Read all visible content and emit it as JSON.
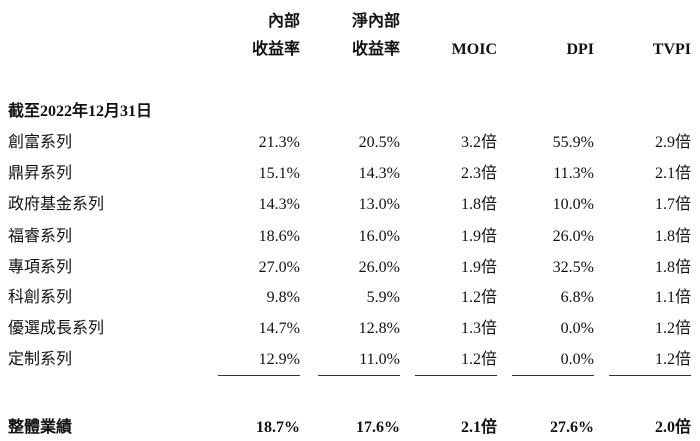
{
  "table": {
    "columns": [
      [
        "內部",
        "收益率"
      ],
      [
        "淨內部",
        "收益率"
      ],
      [
        "MOIC"
      ],
      [
        "DPI"
      ],
      [
        "TVPI"
      ]
    ],
    "section": "截至2022年12月31日",
    "rows": [
      [
        "創富系列",
        "21.3%",
        "20.5%",
        "3.2倍",
        "55.9%",
        "2.9倍"
      ],
      [
        "鼎昇系列",
        "15.1%",
        "14.3%",
        "2.3倍",
        "11.3%",
        "2.1倍"
      ],
      [
        "政府基金系列",
        "14.3%",
        "13.0%",
        "1.8倍",
        "10.0%",
        "1.7倍"
      ],
      [
        "福睿系列",
        "18.6%",
        "16.0%",
        "1.9倍",
        "26.0%",
        "1.8倍"
      ],
      [
        "專項系列",
        "27.0%",
        "26.0%",
        "1.9倍",
        "32.5%",
        "1.8倍"
      ],
      [
        "科創系列",
        "9.8%",
        "5.9%",
        "1.2倍",
        "6.8%",
        "1.1倍"
      ],
      [
        "優選成長系列",
        "14.7%",
        "12.8%",
        "1.3倍",
        "0.0%",
        "1.2倍"
      ],
      [
        "定制系列",
        "12.9%",
        "11.0%",
        "1.2倍",
        "0.0%",
        "1.2倍"
      ]
    ],
    "total": [
      "整體業績",
      "18.7%",
      "17.6%",
      "2.1倍",
      "27.6%",
      "2.0倍"
    ]
  }
}
